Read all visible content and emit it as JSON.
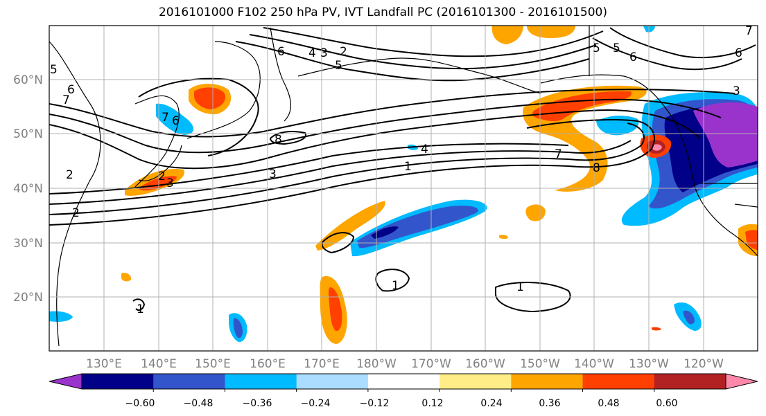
{
  "title": "2016101000 F102 250 hPa PV, IVT Landfall PC (2016101300 - 2016101500)",
  "lat_labels": [
    "60°N",
    "50°N",
    "40°N",
    "30°N",
    "20°N"
  ],
  "lon_labels": [
    "130°E",
    "140°E",
    "150°E",
    "160°E",
    "170°E",
    "180°W",
    "170°W",
    "160°W",
    "150°W",
    "140°W",
    "130°W",
    "120°W"
  ],
  "colorbar": {
    "colors": [
      "#9933cc",
      "#000088",
      "#3355cc",
      "#00bbff",
      "#aaddff",
      "#ffffff",
      "#ffee88",
      "#ffa500",
      "#ff4000",
      "#b22222",
      "#ff88aa"
    ],
    "tick_labels": [
      "−0.60",
      "−0.48",
      "−0.36",
      "−0.24",
      "−0.12",
      "0.12",
      "0.24",
      "0.36",
      "0.48",
      "0.60"
    ]
  },
  "contour_labels": [
    "5",
    "6",
    "7",
    "6",
    "4",
    "3",
    "2",
    "5",
    "6",
    "7",
    "8",
    "3",
    "2",
    "1",
    "4",
    "7",
    "8",
    "3",
    "2",
    "5",
    "6",
    "7",
    "1",
    "1",
    "1",
    "6",
    "5",
    "3",
    "2"
  ]
}
